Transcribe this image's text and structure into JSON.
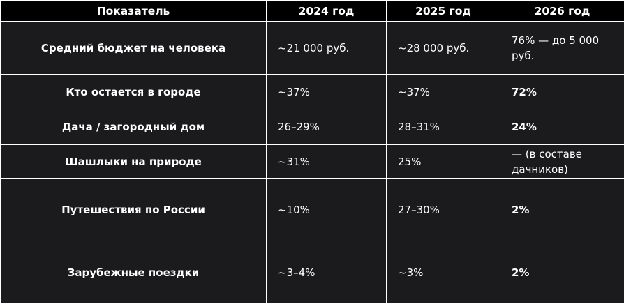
{
  "header": {
    "col1": "Показатель",
    "col2": "2024 год",
    "col3": "2025 год",
    "col4": "2026 год"
  },
  "rows": [
    {
      "label": "Средний бюджет на человека",
      "y2024": "~21 000 руб.",
      "y2025": "~28 000 руб.",
      "y2026": "76% — до 5 000 руб."
    },
    {
      "label": "Кто остается в городе",
      "y2024": "~37%",
      "y2025": "~37%",
      "y2026": "72%"
    },
    {
      "label": "Дача / загородный дом",
      "y2024": "26–29%",
      "y2025": "28–31%",
      "y2026": "24%"
    },
    {
      "label": "Шашлыки на природе",
      "y2024": "~31%",
      "y2025": "25%",
      "y2026": "— (в составе дачников)"
    },
    {
      "label": "Путешествия по России",
      "y2024": "~10%",
      "y2025": "27–30%",
      "y2026": "2%"
    },
    {
      "label": "Зарубежные поездки",
      "y2024": "~3–4%",
      "y2025": "~3%",
      "y2026": "2%"
    }
  ]
}
